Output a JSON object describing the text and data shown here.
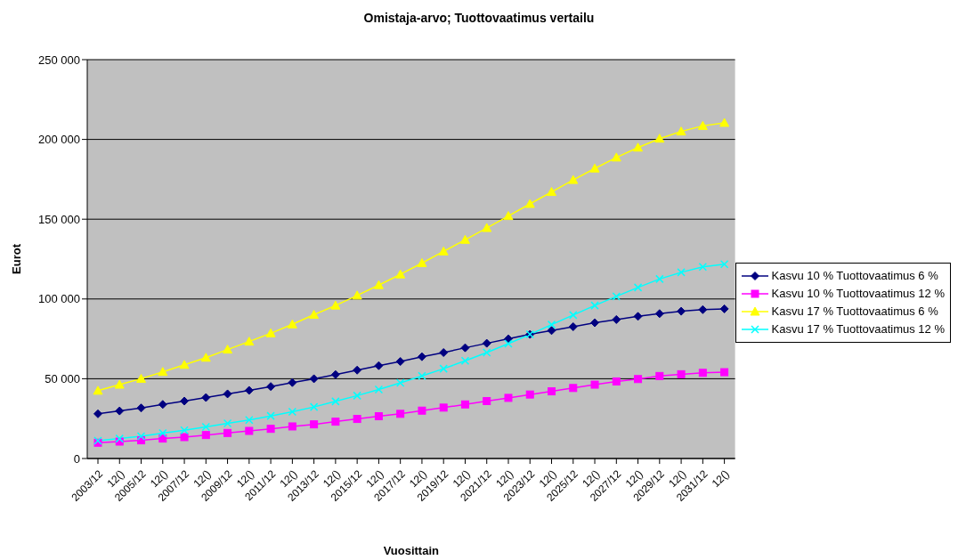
{
  "chart_data": {
    "type": "line",
    "title": "Omistaja-arvo; Tuottovaatimus vertailu",
    "xlabel": "Vuosittain",
    "ylabel": "Eurot",
    "categories": [
      "2003/12",
      "12()",
      "2005/12",
      "12()",
      "2007/12",
      "12()",
      "2009/12",
      "12()",
      "2011/12",
      "12()",
      "2013/12",
      "12()",
      "2015/12",
      "12()",
      "2017/12",
      "12()",
      "2019/12",
      "12()",
      "2021/12",
      "12()",
      "2023/12",
      "12()",
      "2025/12",
      "12()",
      "2027/12",
      "12()",
      "2029/12",
      "12()",
      "2031/12",
      "12()"
    ],
    "series": [
      {
        "name": "Kasvu 10 % Tuottovaatimus 6 %",
        "color": "#000080",
        "marker": "diamond",
        "values": [
          28000,
          29800,
          31700,
          33900,
          36000,
          38200,
          40500,
          42700,
          45100,
          47600,
          50000,
          52600,
          55400,
          58200,
          60800,
          63800,
          66400,
          69400,
          72200,
          75000,
          77800,
          80200,
          82600,
          85100,
          87100,
          89100,
          90800,
          92300,
          93300,
          93800
        ]
      },
      {
        "name": "Kasvu 10 % Tuottovaatimus 12 %",
        "color": "#ff00ff",
        "marker": "square",
        "values": [
          9900,
          10600,
          11400,
          12500,
          13400,
          14700,
          16000,
          17300,
          18600,
          20100,
          21400,
          23100,
          24800,
          26500,
          28000,
          30000,
          31900,
          33900,
          36000,
          38000,
          40100,
          42100,
          44200,
          46300,
          48300,
          49800,
          51700,
          52800,
          53700,
          54100
        ]
      },
      {
        "name": "Kasvu 17 % Tuottovaatimus 6 %",
        "color": "#ffff00",
        "marker": "triangle",
        "values": [
          42500,
          46300,
          50000,
          54300,
          58700,
          63200,
          68300,
          73300,
          78500,
          84100,
          90100,
          95900,
          102200,
          108700,
          115400,
          122500,
          129800,
          137100,
          144500,
          152000,
          159600,
          167100,
          174600,
          181800,
          188700,
          194900,
          200500,
          205000,
          208500,
          210400
        ]
      },
      {
        "name": "Kasvu 17 % Tuottovaatimus 12 %",
        "color": "#00ffff",
        "marker": "cross",
        "values": [
          11200,
          12500,
          14000,
          15900,
          17700,
          19800,
          22000,
          24100,
          26700,
          29300,
          32300,
          35800,
          39400,
          43300,
          47400,
          51800,
          56300,
          61200,
          66400,
          72000,
          77800,
          83900,
          89900,
          95900,
          101600,
          107200,
          112500,
          116700,
          120100,
          121800
        ]
      }
    ],
    "ylim": [
      0,
      250000
    ],
    "yticks": [
      {
        "value": 0,
        "label": "0"
      },
      {
        "value": 50000,
        "label": "50 000"
      },
      {
        "value": 100000,
        "label": "100 000"
      },
      {
        "value": 150000,
        "label": "150 000"
      },
      {
        "value": 200000,
        "label": "200 000"
      },
      {
        "value": 250000,
        "label": "250 000"
      }
    ],
    "grid": "y",
    "legend": "right",
    "line_style": "solid"
  }
}
